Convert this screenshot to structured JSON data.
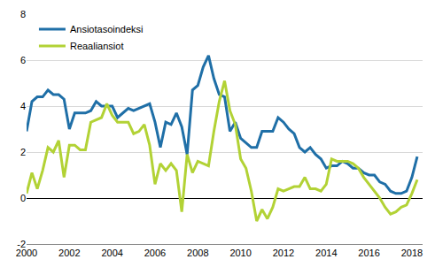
{
  "chart_data": {
    "type": "line",
    "x": [
      2000,
      2000.25,
      2000.5,
      2000.75,
      2001,
      2001.25,
      2001.5,
      2001.75,
      2002,
      2002.25,
      2002.5,
      2002.75,
      2003,
      2003.25,
      2003.5,
      2003.75,
      2004,
      2004.25,
      2004.5,
      2004.75,
      2005,
      2005.25,
      2005.5,
      2005.75,
      2006,
      2006.25,
      2006.5,
      2006.75,
      2007,
      2007.25,
      2007.5,
      2007.75,
      2008,
      2008.25,
      2008.5,
      2008.75,
      2009,
      2009.25,
      2009.5,
      2009.75,
      2010,
      2010.25,
      2010.5,
      2010.75,
      2011,
      2011.25,
      2011.5,
      2011.75,
      2012,
      2012.25,
      2012.5,
      2012.75,
      2013,
      2013.25,
      2013.5,
      2013.75,
      2014,
      2014.25,
      2014.5,
      2014.75,
      2015,
      2015.25,
      2015.5,
      2015.75,
      2016,
      2016.25,
      2016.5,
      2016.75,
      2017,
      2017.25,
      2017.5,
      2017.75,
      2018,
      2018.25
    ],
    "series": [
      {
        "name": "Ansiotasoindeksi",
        "color": "#1f6fa7",
        "values": [
          2.9,
          4.2,
          4.4,
          4.4,
          4.7,
          4.5,
          4.5,
          4.3,
          3.0,
          3.7,
          3.7,
          3.7,
          3.8,
          4.2,
          4.0,
          4.0,
          4.0,
          3.5,
          3.7,
          3.9,
          3.8,
          3.9,
          4.0,
          4.1,
          3.3,
          2.2,
          3.3,
          3.2,
          3.7,
          3.1,
          1.9,
          4.7,
          4.9,
          5.7,
          6.2,
          5.2,
          4.5,
          4.4,
          2.9,
          3.3,
          2.6,
          2.4,
          2.2,
          2.2,
          2.9,
          2.9,
          2.9,
          3.5,
          3.3,
          3.0,
          2.8,
          2.2,
          2.0,
          2.2,
          1.9,
          1.7,
          1.3,
          1.4,
          1.4,
          1.6,
          1.5,
          1.3,
          1.3,
          1.1,
          1.0,
          1.0,
          0.7,
          0.6,
          0.3,
          0.2,
          0.2,
          0.3,
          0.9,
          1.8
        ]
      },
      {
        "name": "Reaaliansiot",
        "color": "#b2d235",
        "values": [
          0.2,
          1.1,
          0.4,
          1.2,
          2.2,
          2.0,
          2.5,
          0.9,
          2.3,
          2.3,
          2.1,
          2.1,
          3.3,
          3.4,
          3.5,
          4.1,
          3.6,
          3.3,
          3.3,
          3.3,
          2.8,
          2.9,
          3.2,
          2.3,
          0.6,
          1.5,
          1.2,
          1.5,
          1.2,
          -0.6,
          1.9,
          1.1,
          1.6,
          1.5,
          1.4,
          2.9,
          4.2,
          5.1,
          3.8,
          3.2,
          1.7,
          1.3,
          0.3,
          -1.0,
          -0.5,
          -0.9,
          -0.4,
          0.4,
          0.3,
          0.4,
          0.5,
          0.5,
          0.9,
          0.4,
          0.4,
          0.3,
          0.6,
          1.7,
          1.6,
          1.6,
          1.6,
          1.5,
          1.3,
          0.9,
          0.6,
          0.3,
          0.0,
          -0.4,
          -0.7,
          -0.6,
          -0.4,
          -0.3,
          0.2,
          0.8
        ]
      }
    ],
    "xlim": [
      2000,
      2018.5
    ],
    "xticks": [
      2000,
      2002,
      2004,
      2006,
      2008,
      2010,
      2012,
      2014,
      2016,
      2018
    ],
    "ylim": [
      -2,
      8
    ],
    "yticks": [
      -2,
      0,
      2,
      4,
      6,
      8
    ],
    "grid": true,
    "legend": "top-left"
  }
}
